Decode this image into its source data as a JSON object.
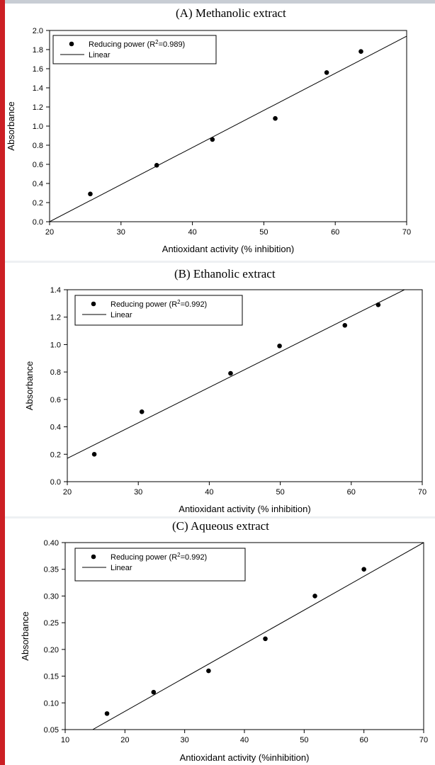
{
  "chart_data": [
    {
      "type": "scatter",
      "title": "(A) Methanolic extract",
      "xlabel": "Antioxidant activity (% inhibition)",
      "ylabel": "Absorbance",
      "xlim": [
        20,
        70
      ],
      "ylim": [
        0.0,
        2.0
      ],
      "xticks": [
        "20",
        "30",
        "40",
        "50",
        "60",
        "70"
      ],
      "yticks": [
        "0.0",
        "0.2",
        "0.4",
        "0.6",
        "0.8",
        "1.0",
        "1.2",
        "1.4",
        "1.6",
        "1.8",
        "2.0"
      ],
      "legend": {
        "position": "top-left",
        "entries": [
          "Reducing power (R2=0.989)",
          "Linear"
        ]
      },
      "legend_parts": {
        "main": "Reducing power (R",
        "sup": "2",
        "tail": "=0.989)",
        "linear": "Linear"
      },
      "series": [
        {
          "name": "Reducing power",
          "x": [
            25.7,
            35.0,
            42.8,
            51.6,
            58.8,
            63.6
          ],
          "y": [
            0.29,
            0.59,
            0.86,
            1.08,
            1.56,
            1.78
          ]
        }
      ],
      "fit": {
        "name": "Linear",
        "x": [
          20,
          70
        ],
        "y": [
          0.0,
          1.94
        ]
      }
    },
    {
      "type": "scatter",
      "title": "(B) Ethanolic extract",
      "xlabel": "Antioxidant activity (% inhibition)",
      "ylabel": "Absorbance",
      "xlim": [
        20,
        70
      ],
      "ylim": [
        0.0,
        1.4
      ],
      "xticks": [
        "20",
        "30",
        "40",
        "50",
        "60",
        "70"
      ],
      "yticks": [
        "0.0",
        "0.2",
        "0.4",
        "0.6",
        "0.8",
        "1.0",
        "1.2",
        "1.4"
      ],
      "legend": {
        "position": "top-left",
        "entries": [
          "Reducing power (R2=0.992)",
          "Linear"
        ]
      },
      "legend_parts": {
        "main": "Reducing power (R",
        "sup": "2",
        "tail": "=0.992)",
        "linear": "Linear"
      },
      "series": [
        {
          "name": "Reducing power",
          "x": [
            23.8,
            30.5,
            43.0,
            49.9,
            59.1,
            63.8
          ],
          "y": [
            0.2,
            0.51,
            0.79,
            0.99,
            1.14,
            1.29
          ]
        }
      ],
      "fit": {
        "name": "Linear",
        "x": [
          20,
          67.5
        ],
        "y": [
          0.17,
          1.4
        ]
      }
    },
    {
      "type": "scatter",
      "title": "(C) Aqueous extract",
      "xlabel": "Antioxidant activity (%inhibition)",
      "ylabel": "Absorbance",
      "xlim": [
        10,
        70
      ],
      "ylim": [
        0.05,
        0.4
      ],
      "xticks": [
        "10",
        "20",
        "30",
        "40",
        "50",
        "60",
        "70"
      ],
      "yticks": [
        "0.05",
        "0.10",
        "0.15",
        "0.20",
        "0.25",
        "0.30",
        "0.35",
        "0.40"
      ],
      "legend": {
        "position": "top-left",
        "entries": [
          "Reducing power (R2=0.992)",
          "Linear"
        ]
      },
      "legend_parts": {
        "main": "Reducing power (R",
        "sup": "2",
        "tail": "=0.992)",
        "linear": "Linear"
      },
      "series": [
        {
          "name": "Reducing power",
          "x": [
            17.0,
            24.8,
            34.0,
            43.5,
            51.8,
            60.0
          ],
          "y": [
            0.08,
            0.12,
            0.16,
            0.22,
            0.3,
            0.35
          ]
        }
      ],
      "fit": {
        "name": "Linear",
        "x": [
          14.6,
          70
        ],
        "y": [
          0.05,
          0.4
        ]
      }
    }
  ]
}
